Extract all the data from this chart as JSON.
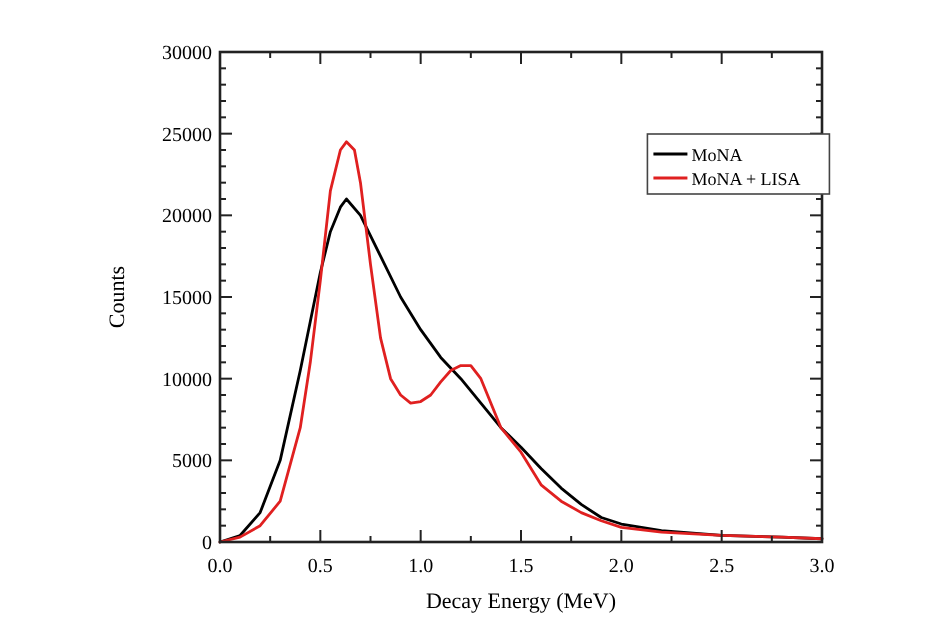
{
  "chart_data": {
    "type": "line",
    "xlabel": "Decay Energy (MeV)",
    "ylabel": "Counts",
    "xlim": [
      0,
      3
    ],
    "ylim": [
      0,
      30000
    ],
    "xticks": [
      {
        "value": 0,
        "label": "0.0"
      },
      {
        "value": 0.5,
        "label": "0.5"
      },
      {
        "value": 1,
        "label": "1.0"
      },
      {
        "value": 1.5,
        "label": "1.5"
      },
      {
        "value": 2,
        "label": "2.0"
      },
      {
        "value": 2.5,
        "label": "2.5"
      },
      {
        "value": 3,
        "label": "3.0"
      }
    ],
    "yticks": [
      0,
      5000,
      10000,
      15000,
      20000,
      25000,
      30000
    ],
    "grid": false,
    "legend": "top right",
    "line_style": "solid",
    "series": [
      {
        "name": "MoNA",
        "color": "#000000",
        "x": [
          0,
          0.1,
          0.2,
          0.3,
          0.4,
          0.45,
          0.5,
          0.55,
          0.6,
          0.63,
          0.7,
          0.8,
          0.9,
          1.0,
          1.1,
          1.2,
          1.3,
          1.4,
          1.5,
          1.6,
          1.7,
          1.8,
          1.9,
          2.0,
          2.2,
          2.5,
          2.8,
          3.0
        ],
        "values": [
          0,
          400,
          1800,
          5000,
          10500,
          13500,
          16500,
          19000,
          20500,
          21000,
          20000,
          17500,
          15000,
          13000,
          11300,
          10000,
          8500,
          7000,
          5800,
          4500,
          3300,
          2300,
          1500,
          1100,
          700,
          400,
          300,
          200
        ]
      },
      {
        "name": "MoNA + LISA",
        "color": "#e02020",
        "x": [
          0,
          0.1,
          0.2,
          0.3,
          0.4,
          0.45,
          0.5,
          0.55,
          0.6,
          0.63,
          0.67,
          0.7,
          0.75,
          0.8,
          0.85,
          0.9,
          0.95,
          1.0,
          1.05,
          1.1,
          1.15,
          1.2,
          1.25,
          1.3,
          1.35,
          1.4,
          1.5,
          1.6,
          1.7,
          1.8,
          1.9,
          2.0,
          2.2,
          2.5,
          2.8,
          3.0
        ],
        "values": [
          0,
          300,
          1000,
          2500,
          7000,
          11000,
          16000,
          21500,
          24000,
          24500,
          24000,
          22000,
          17000,
          12500,
          10000,
          9000,
          8500,
          8600,
          9000,
          9800,
          10500,
          10800,
          10800,
          10000,
          8500,
          7000,
          5500,
          3500,
          2500,
          1800,
          1300,
          900,
          600,
          400,
          300,
          200
        ]
      }
    ]
  }
}
